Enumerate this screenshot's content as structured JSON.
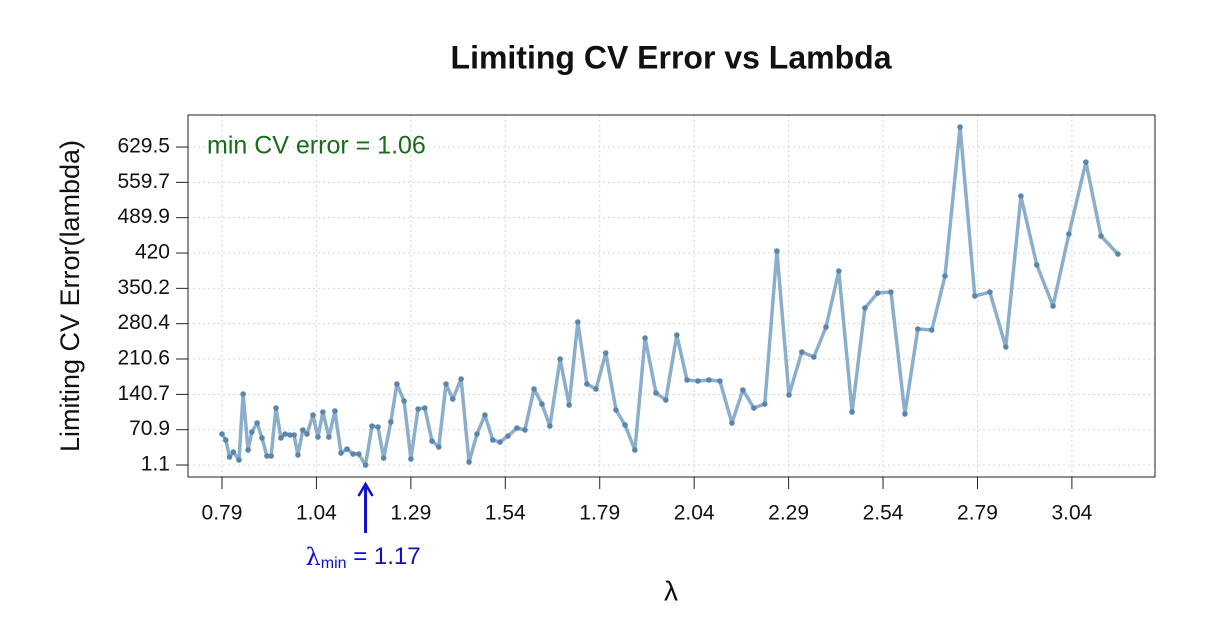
{
  "chart_data": {
    "type": "line",
    "title": "Limiting CV Error vs Lambda",
    "x_label": "λ",
    "y_label": "Limiting CV Error(lambda)",
    "color": "#8aaecb",
    "marker_color": "#5b86ab",
    "grid": true,
    "xlim": [
      0.7,
      3.26
    ],
    "ylim": [
      -22.6,
      692.8
    ],
    "xticks": [
      0.79,
      1.04,
      1.29,
      1.54,
      1.79,
      2.04,
      2.29,
      2.54,
      2.79,
      3.04
    ],
    "yticks": [
      1.1,
      70.9,
      140.7,
      210.6,
      280.4,
      350.2,
      420,
      489.9,
      559.7,
      629.5
    ],
    "x": [
      0.79,
      0.8,
      0.81,
      0.82,
      0.835,
      0.846,
      0.859,
      0.869,
      0.883,
      0.896,
      0.909,
      0.92,
      0.933,
      0.946,
      0.957,
      0.97,
      0.981,
      0.991,
      1.004,
      1.015,
      1.031,
      1.044,
      1.057,
      1.073,
      1.089,
      1.105,
      1.121,
      1.137,
      1.152,
      1.17,
      1.187,
      1.203,
      1.218,
      1.237,
      1.253,
      1.272,
      1.29,
      1.309,
      1.327,
      1.346,
      1.364,
      1.383,
      1.401,
      1.423,
      1.444,
      1.465,
      1.486,
      1.507,
      1.526,
      1.547,
      1.571,
      1.592,
      1.616,
      1.637,
      1.658,
      1.685,
      1.709,
      1.732,
      1.756,
      1.78,
      1.806,
      1.833,
      1.857,
      1.883,
      1.91,
      1.939,
      1.965,
      1.994,
      2.021,
      2.05,
      2.079,
      2.108,
      2.14,
      2.169,
      2.198,
      2.227,
      2.259,
      2.291,
      2.325,
      2.357,
      2.389,
      2.423,
      2.458,
      2.492,
      2.526,
      2.561,
      2.598,
      2.632,
      2.669,
      2.704,
      2.744,
      2.783,
      2.823,
      2.865,
      2.905,
      2.947,
      2.99,
      3.032,
      3.077,
      3.117,
      3.162
    ],
    "values": [
      62.4,
      50.5,
      16.9,
      26.8,
      11.0,
      141.4,
      30.7,
      66.3,
      84.1,
      54.5,
      18.9,
      18.9,
      113.7,
      54.5,
      62.4,
      60.4,
      60.4,
      20.9,
      70.3,
      62.4,
      99.9,
      56.4,
      105.8,
      56.4,
      107.8,
      24.8,
      32.7,
      22.8,
      22.8,
      1.06,
      78.2,
      76.2,
      14.9,
      86.1,
      161.2,
      127.6,
      13.0,
      111.8,
      113.7,
      48.5,
      36.7,
      161.2,
      131.5,
      171.0,
      7.0,
      62.4,
      99.9,
      50.5,
      46.5,
      58.4,
      74.2,
      70.3,
      151.3,
      121.6,
      78.2,
      210.6,
      119.7,
      283.7,
      161.2,
      151.3,
      222.4,
      109.8,
      80.1,
      30.7,
      252.1,
      143.4,
      129.5,
      258.0,
      169.1,
      167.1,
      169.1,
      167.1,
      84.1,
      149.3,
      113.7,
      121.6,
      424.0,
      139.4,
      224.4,
      214.5,
      273.8,
      384.4,
      105.8,
      311.3,
      341.0,
      342.9,
      101.9,
      269.8,
      267.9,
      374.6,
      669.0,
      335.0,
      342.9,
      234.3,
      532.6,
      396.3,
      315.3,
      457.6,
      599.8,
      453.6,
      418.0
    ],
    "min_error": {
      "text": "min CV error = 1.06",
      "value": 1.06,
      "color": "#1a6b1a"
    },
    "lambda_min": {
      "value": 1.17,
      "symbol": "λ",
      "subscript": "min",
      "text": " = 1.17",
      "color": "#1010cc"
    }
  }
}
